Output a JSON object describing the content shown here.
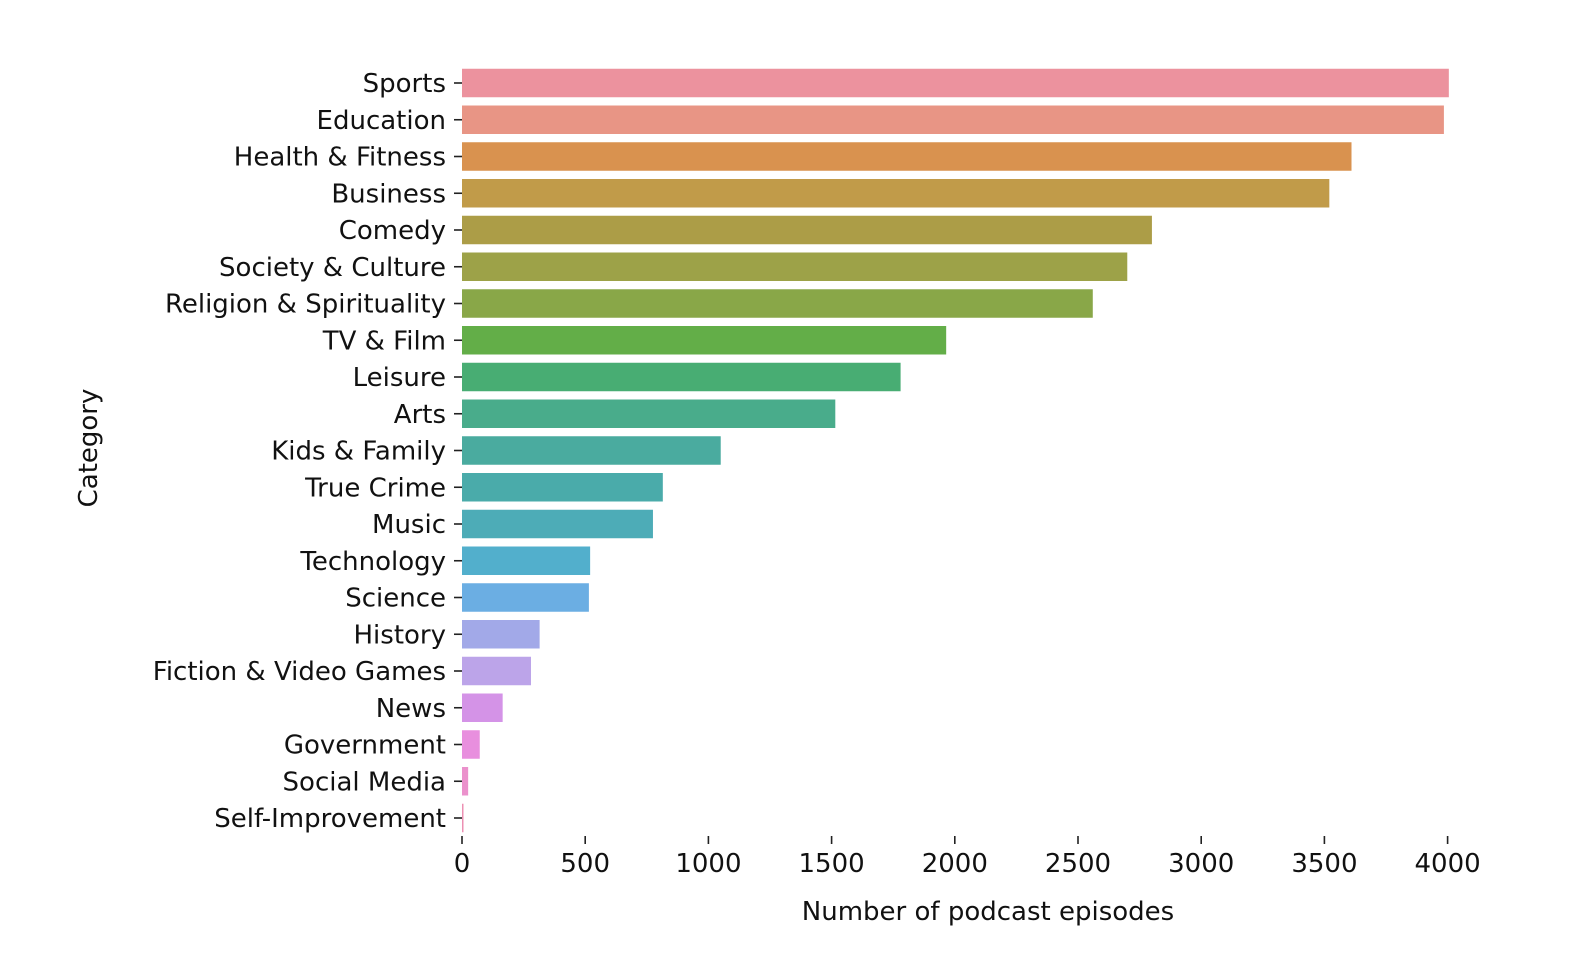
{
  "chart_data": {
    "type": "bar",
    "orientation": "horizontal",
    "xlabel": "Number of podcast episodes",
    "ylabel": "Category",
    "xlim": [
      0,
      4150
    ],
    "xticks": [
      "0",
      "500",
      "1000",
      "1500",
      "2000",
      "2500",
      "3000",
      "3500",
      "4000"
    ],
    "grid": false,
    "legend": "none",
    "categories": [
      "Sports",
      "Education",
      "Health & Fitness",
      "Business",
      "Comedy",
      "Society & Culture",
      "Religion & Spirituality",
      "TV & Film",
      "Leisure",
      "Arts",
      "Kids & Family",
      "True Crime",
      "Music",
      "Technology",
      "Science",
      "History",
      "Fiction & Video Games",
      "News",
      "Government",
      "Social Media",
      "Self-Improvement"
    ],
    "values": [
      4005,
      3985,
      3610,
      3520,
      2800,
      2700,
      2560,
      1965,
      1780,
      1515,
      1050,
      815,
      775,
      520,
      515,
      315,
      280,
      165,
      72,
      25,
      5
    ],
    "colors": [
      "#ec929e",
      "#e89585",
      "#d9924f",
      "#c19b49",
      "#ac9d47",
      "#9da248",
      "#89a748",
      "#63ae48",
      "#48ad73",
      "#49ac8b",
      "#4aab9f",
      "#4aabaa",
      "#4dacb7",
      "#52afcc",
      "#6baee3",
      "#a2a9e8",
      "#bca4e9",
      "#d493e7",
      "#e88fde",
      "#eb91cc",
      "#ec90b3"
    ]
  }
}
